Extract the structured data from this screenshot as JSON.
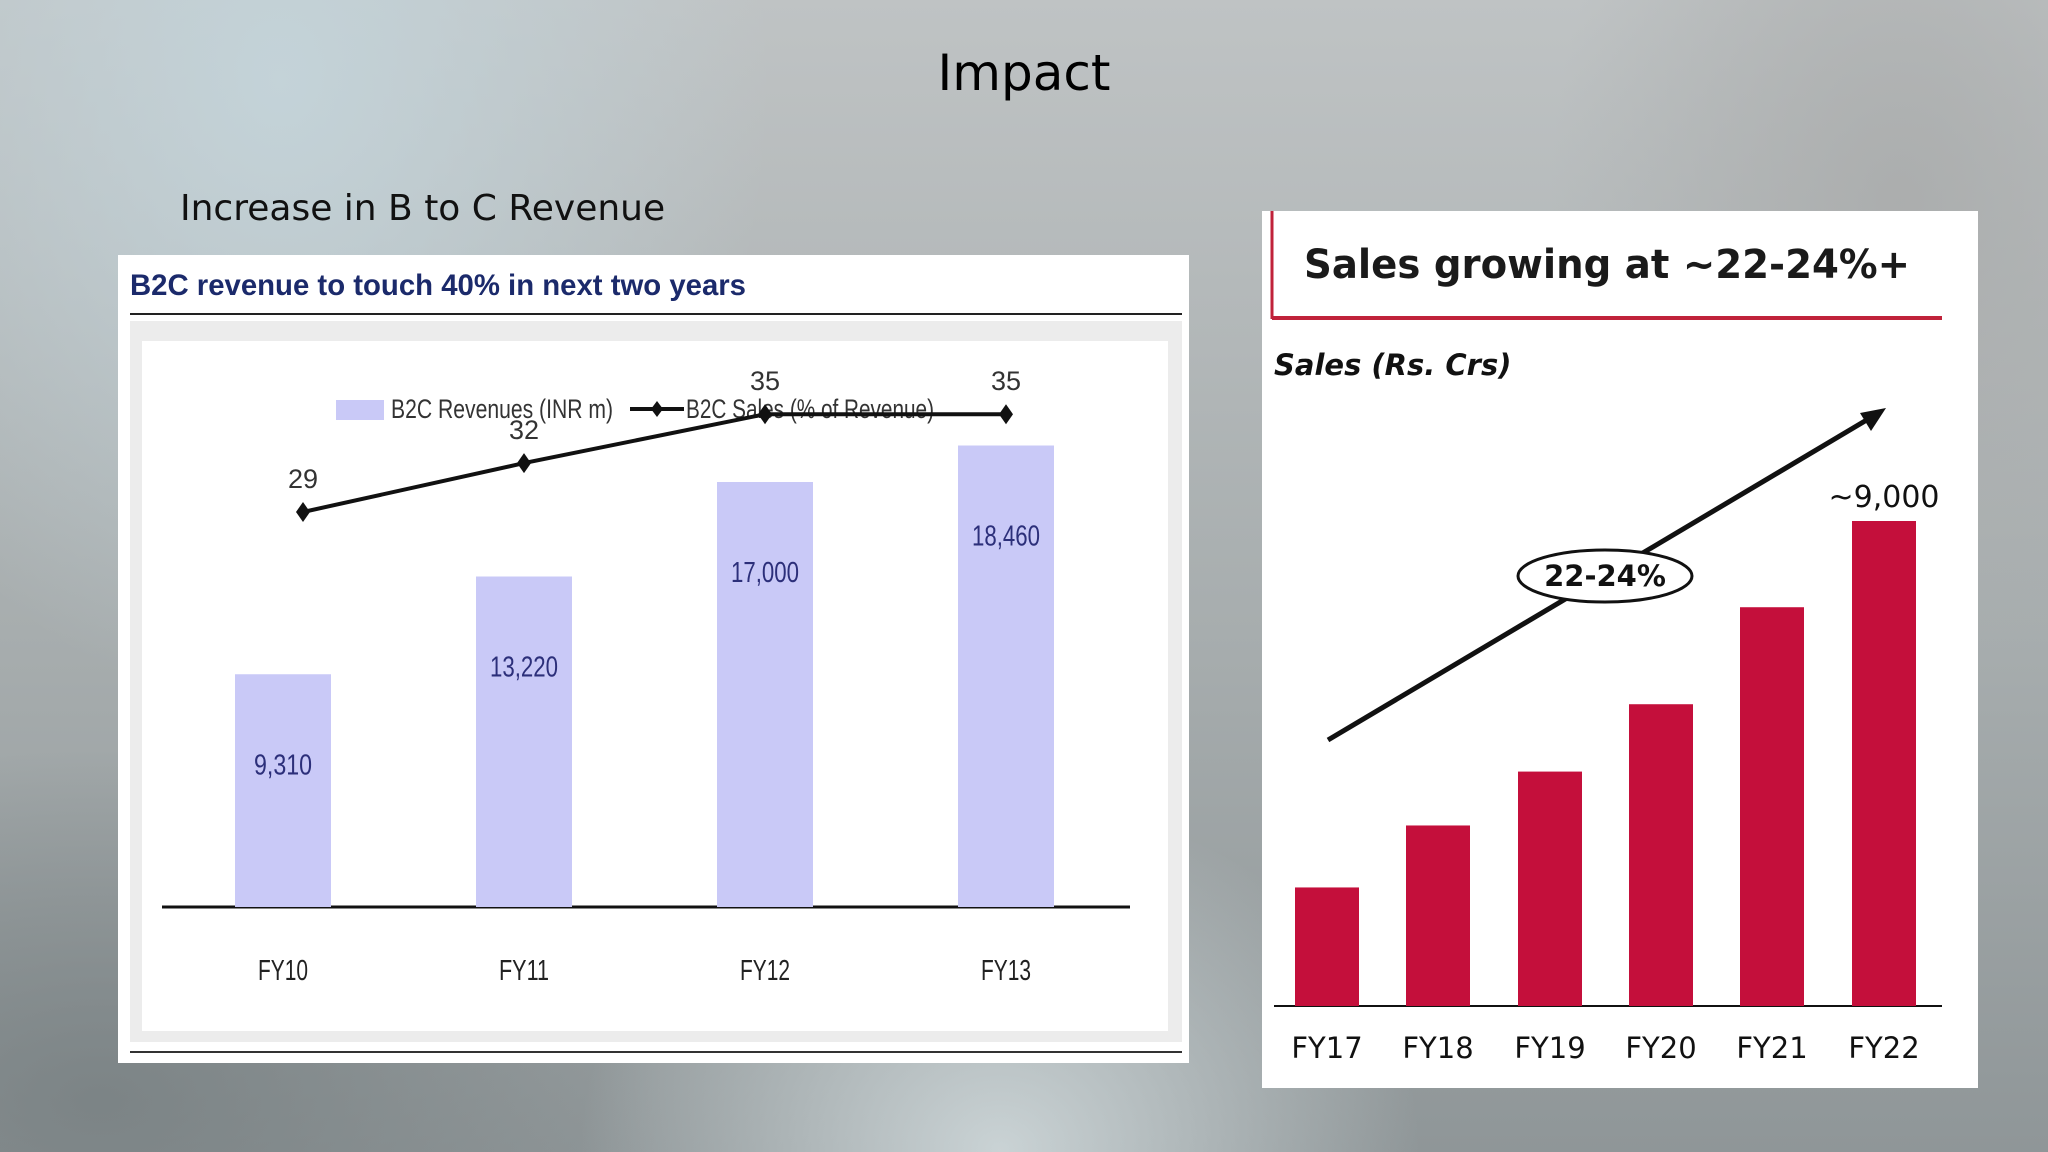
{
  "slide": {
    "title": "Impact",
    "caption": "Increase in B to C Revenue"
  },
  "colors": {
    "left_bar": "#c9c9f7",
    "left_bar_label": "#2c2f7a",
    "left_title": "#1b2a6b",
    "right_bar": "#c40f3b",
    "right_rule": "#c0223a"
  },
  "chart_data": [
    {
      "type": "bar",
      "title": "B2C revenue to touch 40% in next two years",
      "categories": [
        "FY10",
        "FY11",
        "FY12",
        "FY13"
      ],
      "series": [
        {
          "name": "B2C Revenues (INR m)",
          "type": "bar",
          "values": [
            9310,
            13220,
            17000,
            18460
          ],
          "labels": [
            "9,310",
            "13,220",
            "17,000",
            "18,460"
          ]
        },
        {
          "name": "B2C Sales (% of Revenue)",
          "type": "line",
          "values": [
            29,
            32,
            35,
            35
          ],
          "labels": [
            "29",
            "32",
            "35",
            "35"
          ]
        }
      ],
      "legend_position": "top-center",
      "grid": false
    },
    {
      "type": "bar",
      "title": "Sales growing at ~22-24%+",
      "ylabel": "Sales (Rs. Crs)",
      "categories": [
        "FY17",
        "FY18",
        "FY19",
        "FY20",
        "FY21",
        "FY22"
      ],
      "values": [
        2200,
        3350,
        4350,
        5600,
        7400,
        9000
      ],
      "value_labels": {
        "FY22": "~9,000"
      },
      "annotation": "22-24%",
      "grid": false
    }
  ]
}
